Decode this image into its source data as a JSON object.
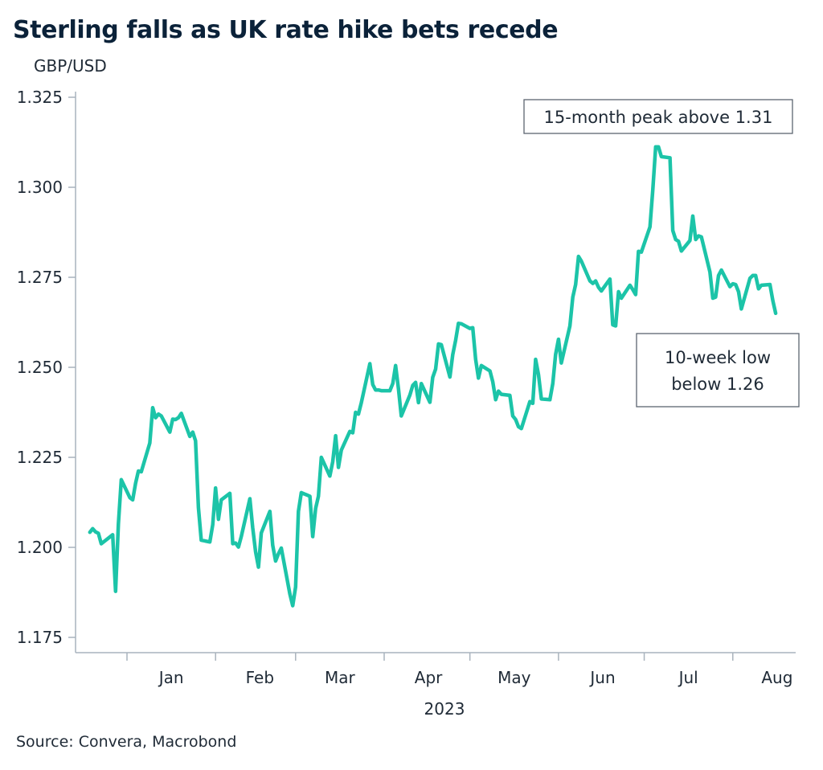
{
  "chart_data": {
    "type": "line",
    "title": "Sterling falls as UK rate hike bets recede",
    "ylabel": "GBP/USD",
    "xlabel": "2023",
    "ylim": [
      1.175,
      1.325
    ],
    "yticks": [
      "1.175",
      "1.200",
      "1.225",
      "1.250",
      "1.275",
      "1.300",
      "1.325"
    ],
    "ytick_values": [
      1.175,
      1.2,
      1.225,
      1.25,
      1.275,
      1.3,
      1.325
    ],
    "months": [
      "Jan",
      "Feb",
      "Mar",
      "Apr",
      "May",
      "Jun",
      "Jul",
      "Aug"
    ],
    "grid": false,
    "color": "#1cc4a8",
    "series": [
      {
        "x": [
          "2022-12-19",
          "2022-12-20",
          "2022-12-21",
          "2022-12-22",
          "2022-12-23",
          "2022-12-27",
          "2022-12-28",
          "2022-12-29",
          "2022-12-30",
          "2023-01-02",
          "2023-01-03",
          "2023-01-04",
          "2023-01-05",
          "2023-01-06",
          "2023-01-09",
          "2023-01-10",
          "2023-01-11",
          "2023-01-12",
          "2023-01-13",
          "2023-01-16",
          "2023-01-17",
          "2023-01-18",
          "2023-01-19",
          "2023-01-20",
          "2023-01-23",
          "2023-01-24",
          "2023-01-25",
          "2023-01-26",
          "2023-01-27",
          "2023-01-30",
          "2023-01-31",
          "2023-02-01",
          "2023-02-02",
          "2023-02-03",
          "2023-02-06",
          "2023-02-07",
          "2023-02-08",
          "2023-02-09",
          "2023-02-10",
          "2023-02-13",
          "2023-02-14",
          "2023-02-15",
          "2023-02-16",
          "2023-02-17",
          "2023-02-20",
          "2023-02-21",
          "2023-02-22",
          "2023-02-23",
          "2023-02-24",
          "2023-02-27",
          "2023-02-28",
          "2023-03-01",
          "2023-03-02",
          "2023-03-03",
          "2023-03-06",
          "2023-03-07",
          "2023-03-08",
          "2023-03-09",
          "2023-03-10",
          "2023-03-13",
          "2023-03-14",
          "2023-03-15",
          "2023-03-16",
          "2023-03-17",
          "2023-03-20",
          "2023-03-21",
          "2023-03-22",
          "2023-03-23",
          "2023-03-24",
          "2023-03-27",
          "2023-03-28",
          "2023-03-29",
          "2023-03-30",
          "2023-03-31",
          "2023-04-03",
          "2023-04-04",
          "2023-04-05",
          "2023-04-06",
          "2023-04-07",
          "2023-04-10",
          "2023-04-11",
          "2023-04-12",
          "2023-04-13",
          "2023-04-14",
          "2023-04-17",
          "2023-04-18",
          "2023-04-19",
          "2023-04-20",
          "2023-04-21",
          "2023-04-24",
          "2023-04-25",
          "2023-04-26",
          "2023-04-27",
          "2023-04-28",
          "2023-05-01",
          "2023-05-02",
          "2023-05-03",
          "2023-05-04",
          "2023-05-05",
          "2023-05-08",
          "2023-05-09",
          "2023-05-10",
          "2023-05-11",
          "2023-05-12",
          "2023-05-15",
          "2023-05-16",
          "2023-05-17",
          "2023-05-18",
          "2023-05-19",
          "2023-05-22",
          "2023-05-23",
          "2023-05-24",
          "2023-05-25",
          "2023-05-26",
          "2023-05-29",
          "2023-05-30",
          "2023-05-31",
          "2023-06-01",
          "2023-06-02",
          "2023-06-05",
          "2023-06-06",
          "2023-06-07",
          "2023-06-08",
          "2023-06-09",
          "2023-06-12",
          "2023-06-13",
          "2023-06-14",
          "2023-06-15",
          "2023-06-16",
          "2023-06-19",
          "2023-06-20",
          "2023-06-21",
          "2023-06-22",
          "2023-06-23",
          "2023-06-26",
          "2023-06-27",
          "2023-06-28",
          "2023-06-29",
          "2023-06-30",
          "2023-07-03",
          "2023-07-04",
          "2023-07-05",
          "2023-07-06",
          "2023-07-07",
          "2023-07-10",
          "2023-07-11",
          "2023-07-12",
          "2023-07-13",
          "2023-07-14",
          "2023-07-17",
          "2023-07-18",
          "2023-07-19",
          "2023-07-20",
          "2023-07-21",
          "2023-07-24",
          "2023-07-25",
          "2023-07-26",
          "2023-07-27",
          "2023-07-28",
          "2023-07-31",
          "2023-08-01",
          "2023-08-02",
          "2023-08-03",
          "2023-08-04",
          "2023-08-07",
          "2023-08-08",
          "2023-08-09",
          "2023-08-10",
          "2023-08-11",
          "2023-08-14",
          "2023-08-15",
          "2023-08-16"
        ],
        "values": [
          1.2042,
          1.2052,
          1.2043,
          1.2039,
          1.201,
          1.2035,
          1.1878,
          1.2065,
          1.2188,
          1.2138,
          1.2132,
          1.2178,
          1.2212,
          1.221,
          1.229,
          1.2388,
          1.236,
          1.237,
          1.2365,
          1.232,
          1.2356,
          1.2355,
          1.236,
          1.2372,
          1.2308,
          1.232,
          1.2296,
          1.211,
          1.202,
          1.2015,
          1.2063,
          1.2165,
          1.2078,
          1.2132,
          1.215,
          1.201,
          1.2012,
          1.2001,
          1.203,
          1.2135,
          1.2055,
          1.1988,
          1.1945,
          1.204,
          1.21,
          1.2006,
          1.1962,
          1.1982,
          1.1998,
          1.187,
          1.1838,
          1.189,
          1.21,
          1.2152,
          1.2142,
          1.203,
          1.2108,
          1.2142,
          1.225,
          1.2198,
          1.2238,
          1.231,
          1.2222,
          1.227,
          1.2322,
          1.2318,
          1.2375,
          1.237,
          1.2402,
          1.251,
          1.2452,
          1.2437,
          1.2437,
          1.2435,
          1.2435,
          1.2455,
          1.2505,
          1.244,
          1.2365,
          1.2423,
          1.245,
          1.2458,
          1.2402,
          1.2455,
          1.2403,
          1.2472,
          1.2495,
          1.2565,
          1.2563,
          1.2473,
          1.2535,
          1.2575,
          1.2622,
          1.2621,
          1.2608,
          1.261,
          1.2522,
          1.247,
          1.2505,
          1.249,
          1.246,
          1.241,
          1.2434,
          1.2425,
          1.2422,
          1.2365,
          1.2355,
          1.2335,
          1.233,
          1.2405,
          1.24,
          1.2522,
          1.248,
          1.2412,
          1.241,
          1.2455,
          1.2536,
          1.2578,
          1.2512,
          1.2615,
          1.2695,
          1.273,
          1.2808,
          1.2795,
          1.274,
          1.2733,
          1.274,
          1.2722,
          1.2712,
          1.2745,
          1.2618,
          1.2615,
          1.271,
          1.2692,
          1.2728,
          1.2716,
          1.2702,
          1.2822,
          1.282,
          1.289,
          1.2992,
          1.3112,
          1.3112,
          1.3085,
          1.3082,
          1.288,
          1.2855,
          1.285,
          1.2823,
          1.2852,
          1.292,
          1.2855,
          1.2865,
          1.2862,
          1.2765,
          1.2692,
          1.2695,
          1.2755,
          1.277,
          1.2724,
          1.2732,
          1.273,
          1.271,
          1.2662,
          1.2747,
          1.2755,
          1.2755,
          1.2718,
          1.2728,
          1.273,
          1.2685,
          1.265
        ]
      }
    ],
    "annotations": [
      {
        "text": "15-month peak above 1.31"
      },
      {
        "text": "10-week low\nbelow 1.26"
      }
    ]
  },
  "source": "Source: Convera, Macrobond"
}
